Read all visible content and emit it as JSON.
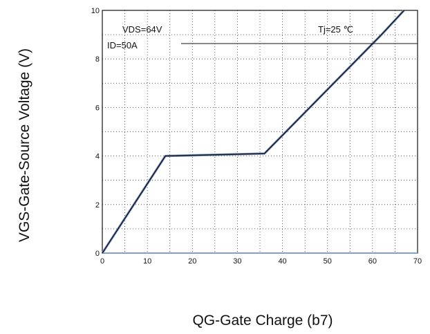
{
  "chart_data": {
    "type": "line",
    "xlabel": "QG-Gate Charge (b7)",
    "ylabel": "VGS-Gate-Source Voltage (V)",
    "xlim": [
      0,
      70
    ],
    "ylim": [
      0,
      10
    ],
    "x_ticks": [
      "0",
      "10",
      "20",
      "30",
      "40",
      "50",
      "60",
      "70"
    ],
    "y_ticks": [
      "0",
      "2",
      "4",
      "6",
      "8",
      "10"
    ],
    "grid": true,
    "annotations": [
      "VDS=64V",
      "ID=50A",
      "Tj=25 ℃"
    ],
    "series": [
      {
        "x": [
          0,
          14,
          36,
          62,
          67
        ],
        "y": [
          0,
          4.0,
          4.1,
          9.0,
          10.0
        ]
      }
    ],
    "colors": {
      "line": "#1a1a1a",
      "line_shadow": "#7f9fd6",
      "axis_bottom": "#7f9fd6",
      "grid": "#333333"
    }
  }
}
